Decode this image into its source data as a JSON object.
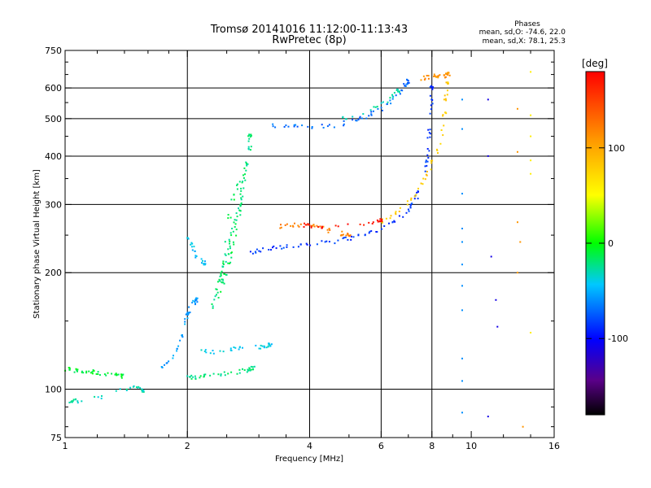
{
  "chart_data": {
    "type": "scatter",
    "title": "Tromsø 20141016 11:12:00-11:13:43",
    "subtitle": "RwPretec (8p)",
    "xlabel": "Frequency [MHz]",
    "ylabel": "Stationary phase Virtual Height [km]",
    "xscale": "log",
    "yscale": "log",
    "xlim": [
      1,
      16
    ],
    "ylim": [
      75,
      750
    ],
    "xticks": [
      1,
      2,
      4,
      6,
      8,
      10,
      16
    ],
    "yticks": [
      75,
      100,
      200,
      300,
      400,
      500,
      600,
      750
    ],
    "xgrid": [
      2,
      4,
      6,
      8
    ],
    "ygrid": [
      100,
      200,
      300,
      400,
      500,
      600
    ],
    "stats": {
      "heading": "Phases",
      "line1": "mean, sd,O: -74.6, 22.0",
      "line2": "mean, sd,X:  78.1, 25.3"
    },
    "colorbar": {
      "label": "[deg]",
      "min": -180,
      "max": 180,
      "ticks": [
        "100",
        "0",
        "-100"
      ],
      "tick_values": [
        100,
        0,
        -100
      ]
    },
    "traces": [
      {
        "trace": "E-low",
        "phase": -10,
        "points": [
          [
            1.0,
            113
          ],
          [
            1.05,
            112
          ],
          [
            1.1,
            111
          ],
          [
            1.15,
            111
          ],
          [
            1.2,
            110
          ],
          [
            1.3,
            109
          ],
          [
            1.38,
            108
          ]
        ]
      },
      {
        "trace": "E-low-2",
        "phase": -30,
        "points": [
          [
            1.02,
            93
          ],
          [
            1.05,
            94
          ],
          [
            1.1,
            92
          ],
          [
            1.4,
            100
          ],
          [
            1.5,
            101
          ],
          [
            1.55,
            99
          ]
        ]
      },
      {
        "trace": "Es-2",
        "phase": -20,
        "points": [
          [
            2.0,
            108
          ],
          [
            2.1,
            107
          ],
          [
            2.2,
            108
          ],
          [
            2.4,
            109
          ],
          [
            2.6,
            110
          ],
          [
            2.8,
            112
          ],
          [
            2.9,
            113
          ]
        ]
      },
      {
        "trace": "Es-2b",
        "phase": -40,
        "points": [
          [
            2.1,
            126
          ],
          [
            2.3,
            125
          ],
          [
            2.6,
            127
          ],
          [
            2.9,
            128
          ],
          [
            3.1,
            129
          ],
          [
            3.2,
            130
          ]
        ]
      },
      {
        "trace": "E-cusp",
        "phase": -55,
        "points": [
          [
            1.7,
            112
          ],
          [
            1.8,
            118
          ],
          [
            1.9,
            128
          ],
          [
            1.95,
            140
          ],
          [
            2.0,
            155
          ],
          [
            2.05,
            165
          ],
          [
            2.1,
            170
          ]
        ]
      },
      {
        "trace": "F1-left",
        "phase": -45,
        "points": [
          [
            2.0,
            250
          ],
          [
            2.05,
            235
          ],
          [
            2.1,
            220
          ],
          [
            2.2,
            212
          ]
        ]
      },
      {
        "trace": "F-cusp",
        "phase": -20,
        "points": [
          [
            2.3,
            160
          ],
          [
            2.35,
            175
          ],
          [
            2.4,
            190
          ],
          [
            2.45,
            205
          ],
          [
            2.5,
            220
          ],
          [
            2.55,
            240
          ],
          [
            2.6,
            260
          ],
          [
            2.65,
            280
          ],
          [
            2.7,
            300
          ],
          [
            2.75,
            340
          ],
          [
            2.8,
            380
          ],
          [
            2.85,
            420
          ],
          [
            2.85,
            450
          ]
        ]
      },
      {
        "trace": "F-cusp-spread",
        "phase": -15,
        "points": [
          [
            2.4,
            170
          ],
          [
            2.5,
            200
          ],
          [
            2.6,
            230
          ],
          [
            2.7,
            290
          ],
          [
            2.75,
            360
          ],
          [
            2.6,
            320
          ],
          [
            2.5,
            250
          ],
          [
            2.45,
            190
          ]
        ]
      },
      {
        "trace": "F-O",
        "phase": -85,
        "points": [
          [
            2.8,
            225
          ],
          [
            3.0,
            228
          ],
          [
            3.3,
            232
          ],
          [
            3.6,
            234
          ],
          [
            4.0,
            237
          ],
          [
            4.5,
            240
          ],
          [
            5.0,
            245
          ],
          [
            5.5,
            252
          ],
          [
            6.0,
            260
          ],
          [
            6.5,
            272
          ],
          [
            7.0,
            290
          ],
          [
            7.3,
            310
          ],
          [
            7.6,
            350
          ],
          [
            7.8,
            400
          ],
          [
            7.9,
            460
          ],
          [
            8.0,
            530
          ],
          [
            8.0,
            600
          ]
        ]
      },
      {
        "trace": "F-X",
        "phase": 80,
        "points": [
          [
            5.8,
            265
          ],
          [
            6.3,
            278
          ],
          [
            6.8,
            295
          ],
          [
            7.3,
            320
          ],
          [
            7.8,
            360
          ],
          [
            8.2,
            410
          ],
          [
            8.5,
            470
          ],
          [
            8.65,
            540
          ],
          [
            8.7,
            620
          ]
        ]
      },
      {
        "trace": "F-X-mid",
        "phase": 120,
        "points": [
          [
            3.3,
            262
          ],
          [
            3.6,
            266
          ],
          [
            3.9,
            265
          ],
          [
            4.2,
            262
          ],
          [
            4.6,
            255
          ],
          [
            5.0,
            250
          ]
        ]
      },
      {
        "trace": "F-X-red",
        "phase": 170,
        "points": [
          [
            3.8,
            266
          ],
          [
            4.0,
            265
          ],
          [
            4.3,
            260
          ],
          [
            5.5,
            268
          ],
          [
            6.0,
            272
          ]
        ]
      },
      {
        "trace": "F-dots-upper",
        "phase": -70,
        "points": [
          [
            3.2,
            480
          ],
          [
            3.6,
            478
          ],
          [
            4.0,
            475
          ],
          [
            4.6,
            480
          ],
          [
            5.2,
            495
          ],
          [
            5.6,
            510
          ],
          [
            6.0,
            530
          ],
          [
            6.4,
            560
          ],
          [
            6.8,
            600
          ],
          [
            7.0,
            625
          ]
        ]
      },
      {
        "trace": "F-dots-upper-2",
        "phase": -30,
        "points": [
          [
            4.8,
            500
          ],
          [
            5.5,
            520
          ],
          [
            6.2,
            555
          ],
          [
            6.6,
            590
          ]
        ]
      },
      {
        "trace": "F-X-top",
        "phase": 110,
        "points": [
          [
            7.4,
            630
          ],
          [
            7.8,
            640
          ],
          [
            8.2,
            645
          ],
          [
            8.4,
            640
          ],
          [
            8.8,
            650
          ]
        ]
      },
      {
        "trace": "noise-9.5",
        "phase": -60,
        "points": [
          [
            9.5,
            560
          ],
          [
            9.5,
            470
          ],
          [
            9.5,
            320
          ],
          [
            9.5,
            260
          ],
          [
            9.5,
            240
          ],
          [
            9.5,
            210
          ],
          [
            9.5,
            185
          ],
          [
            9.5,
            160
          ],
          [
            9.5,
            120
          ],
          [
            9.5,
            105
          ],
          [
            9.5,
            87
          ]
        ]
      },
      {
        "trace": "noise-11",
        "phase": -110,
        "points": [
          [
            11.0,
            560
          ],
          [
            11.0,
            400
          ],
          [
            11.2,
            220
          ],
          [
            11.5,
            170
          ],
          [
            11.6,
            145
          ],
          [
            11.0,
            85
          ]
        ]
      },
      {
        "trace": "noise-13",
        "phase": 110,
        "points": [
          [
            13.0,
            530
          ],
          [
            13.0,
            410
          ],
          [
            13.0,
            270
          ],
          [
            13.2,
            240
          ],
          [
            13.0,
            200
          ],
          [
            13.4,
            80
          ]
        ]
      },
      {
        "trace": "noise-14",
        "phase": 60,
        "points": [
          [
            14.0,
            660
          ],
          [
            14.0,
            450
          ],
          [
            14.0,
            390
          ],
          [
            14.0,
            360
          ],
          [
            14.0,
            140
          ],
          [
            14.0,
            510
          ]
        ]
      }
    ]
  }
}
